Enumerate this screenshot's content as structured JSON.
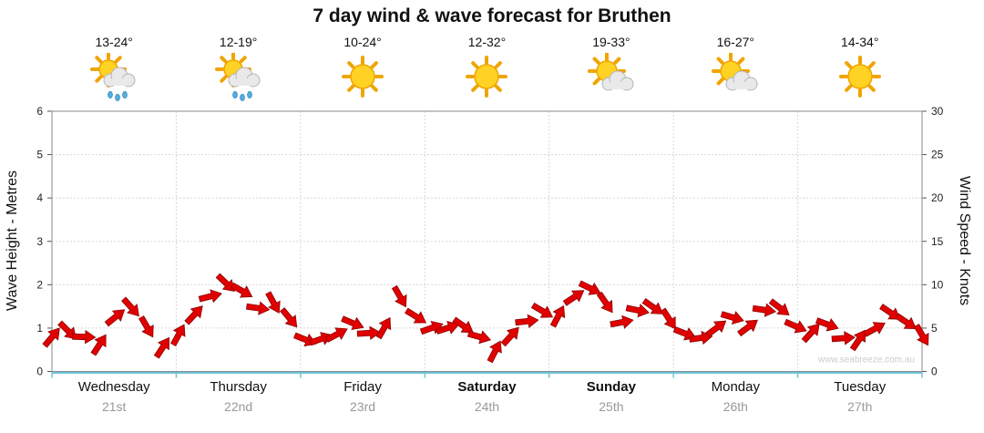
{
  "header": {
    "title": "7 day wind & wave forecast for Bruthen"
  },
  "watermark": "www.seabreeze.com.au",
  "forecast": [
    {
      "temp": "13-24°",
      "icon": "sun-cloud-rain"
    },
    {
      "temp": "12-19°",
      "icon": "sun-cloud-rain"
    },
    {
      "temp": "10-24°",
      "icon": "sun"
    },
    {
      "temp": "12-32°",
      "icon": "sun"
    },
    {
      "temp": "19-33°",
      "icon": "sun-cloud"
    },
    {
      "temp": "16-27°",
      "icon": "sun-cloud"
    },
    {
      "temp": "14-34°",
      "icon": "sun"
    }
  ],
  "chart_data": {
    "type": "line",
    "title": "7 day wind & wave forecast for Bruthen",
    "marker": "red-wind-arrows",
    "marker_color": "#e10000",
    "marker_outline": "#8b0000",
    "grid": true,
    "left_axis": {
      "label": "Wave Height - Metres",
      "min": 0,
      "max": 6,
      "step": 1,
      "ticks": [
        0,
        1,
        2,
        3,
        4,
        5,
        6
      ]
    },
    "right_axis": {
      "label": "Wind Speed - Knots",
      "min": 0,
      "max": 30,
      "step": 5,
      "ticks": [
        0,
        5,
        10,
        15,
        20,
        25,
        30
      ]
    },
    "days": [
      {
        "name": "Wednesday",
        "date": "21st",
        "bold": false
      },
      {
        "name": "Thursday",
        "date": "22nd",
        "bold": false
      },
      {
        "name": "Friday",
        "date": "23rd",
        "bold": false
      },
      {
        "name": "Saturday",
        "date": "24th",
        "bold": true
      },
      {
        "name": "Sunday",
        "date": "25th",
        "bold": true
      },
      {
        "name": "Monday",
        "date": "26th",
        "bold": false
      },
      {
        "name": "Tuesday",
        "date": "27th",
        "bold": false
      }
    ],
    "points_per_day": 8,
    "series": [
      {
        "name": "Wave Height (m)",
        "values": [
          0.8,
          0.9,
          0.8,
          0.6,
          1.3,
          1.5,
          1.0,
          0.6,
          0.9,
          1.3,
          1.7,
          2.0,
          1.9,
          1.5,
          1.6,
          1.2,
          0.8,
          0.7,
          0.9,
          1.1,
          0.9,
          1.0,
          1.7,
          1.3,
          1.0,
          1.0,
          1.0,
          0.8,
          0.5,
          0.8,
          1.2,
          1.4,
          1.3,
          1.7,
          1.9,
          1.6,
          1.1,
          1.4,
          1.5,
          1.2,
          0.9,
          0.8,
          1.0,
          1.2,
          1.0,
          1.4,
          1.5,
          1.1,
          0.9,
          1.1,
          0.8,
          0.7,
          1.0,
          1.3,
          1.2,
          0.9
        ]
      },
      {
        "name": "Wind Speed (knots)",
        "values": [
          4,
          4.5,
          4,
          3,
          6.5,
          7.5,
          5,
          3,
          4.5,
          6.5,
          8.5,
          10,
          9.5,
          7.5,
          8,
          6,
          4,
          3.5,
          4.5,
          5.5,
          4.5,
          5,
          8.5,
          6.5,
          5,
          5,
          5,
          4,
          2.5,
          4,
          6,
          7,
          6.5,
          8.5,
          9.5,
          8,
          5.5,
          7,
          7.5,
          6,
          4.5,
          4,
          5,
          6,
          5,
          7,
          7.5,
          5.5,
          4.5,
          5.5,
          4,
          3.5,
          5,
          6.5,
          6,
          4.5
        ]
      }
    ]
  }
}
